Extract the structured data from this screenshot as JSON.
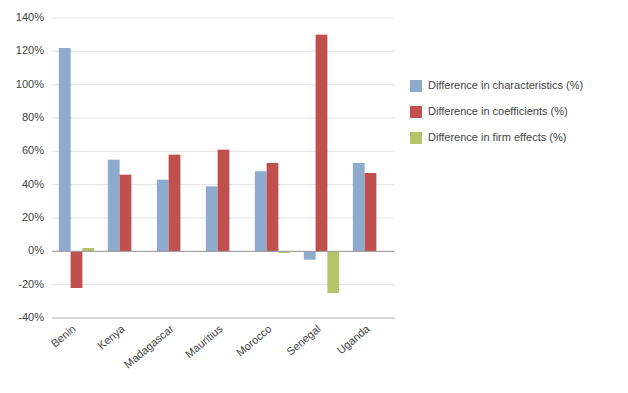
{
  "chart_data": {
    "type": "bar",
    "categories": [
      "Benin",
      "Kenya",
      "Madagascar",
      "Mauritius",
      "Morocco",
      "Senegal",
      "Uganda"
    ],
    "series": [
      {
        "name": "Difference in characteristics (%)",
        "color": "#8eaacc",
        "values": [
          1.22,
          0.55,
          0.43,
          0.39,
          0.48,
          -0.05,
          0.53
        ]
      },
      {
        "name": "Difference in coefficients (%)",
        "color": "#c0504d",
        "values": [
          -0.22,
          0.46,
          0.58,
          0.61,
          0.53,
          1.3,
          0.47
        ]
      },
      {
        "name": "Difference in firm effects (%)",
        "color": "#b5c46a",
        "values": [
          0.02,
          0.0,
          0.0,
          0.0,
          -0.01,
          -0.25,
          0.0
        ]
      }
    ],
    "ylim": [
      -0.4,
      1.4
    ],
    "yticks": [
      {
        "value": -0.4,
        "label": "-40%"
      },
      {
        "value": -0.2,
        "label": "-20%"
      },
      {
        "value": 0.0,
        "label": "0%"
      },
      {
        "value": 0.2,
        "label": "20%"
      },
      {
        "value": 0.4,
        "label": "40%"
      },
      {
        "value": 0.6,
        "label": "60%"
      },
      {
        "value": 0.8,
        "label": "80%"
      },
      {
        "value": 1.0,
        "label": "100%"
      },
      {
        "value": 1.2,
        "label": "120%"
      },
      {
        "value": 1.4,
        "label": "140%"
      }
    ],
    "grid": true,
    "legend": "right"
  }
}
